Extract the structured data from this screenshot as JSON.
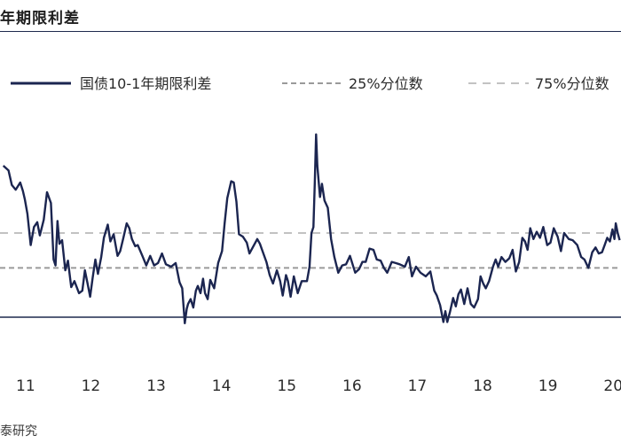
{
  "header": {
    "title": "年期限利差"
  },
  "footer": {
    "source": "泰研究"
  },
  "colors": {
    "series": "#1b2550",
    "p25": "#9a9a9a",
    "p75": "#c2c2c2",
    "axis": "#1f2a4d"
  },
  "chart_data": {
    "type": "line",
    "title": "年期限利差",
    "legend_position": "top",
    "x_tick_labels": [
      "11",
      "12",
      "13",
      "14",
      "15",
      "16",
      "17",
      "18",
      "19",
      "20"
    ],
    "series": [
      {
        "name": "国债10-1年期限利差",
        "style": "solid",
        "points": [
          [
            2010.67,
            226
          ],
          [
            2010.75,
            222
          ],
          [
            2010.8,
            210
          ],
          [
            2010.86,
            206
          ],
          [
            2010.93,
            212
          ],
          [
            2010.97,
            205
          ],
          [
            2011.0,
            198
          ],
          [
            2011.04,
            186
          ],
          [
            2011.09,
            160
          ],
          [
            2011.14,
            175
          ],
          [
            2011.19,
            179
          ],
          [
            2011.23,
            168
          ],
          [
            2011.29,
            181
          ],
          [
            2011.34,
            204
          ],
          [
            2011.4,
            195
          ],
          [
            2011.44,
            148
          ],
          [
            2011.47,
            143
          ],
          [
            2011.5,
            180
          ],
          [
            2011.53,
            161
          ],
          [
            2011.57,
            164
          ],
          [
            2011.62,
            139
          ],
          [
            2011.66,
            147
          ],
          [
            2011.71,
            125
          ],
          [
            2011.76,
            130
          ],
          [
            2011.83,
            120
          ],
          [
            2011.88,
            122
          ],
          [
            2011.92,
            139
          ],
          [
            2011.96,
            128
          ],
          [
            2012.0,
            117
          ],
          [
            2012.04,
            133
          ],
          [
            2012.08,
            148
          ],
          [
            2012.12,
            136
          ],
          [
            2012.17,
            150
          ],
          [
            2012.21,
            166
          ],
          [
            2012.27,
            177
          ],
          [
            2012.31,
            163
          ],
          [
            2012.36,
            169
          ],
          [
            2012.42,
            151
          ],
          [
            2012.46,
            155
          ],
          [
            2012.51,
            166
          ],
          [
            2012.56,
            178
          ],
          [
            2012.6,
            174
          ],
          [
            2012.64,
            165
          ],
          [
            2012.69,
            159
          ],
          [
            2012.73,
            160
          ],
          [
            2012.8,
            151
          ],
          [
            2012.86,
            143
          ],
          [
            2012.92,
            151
          ],
          [
            2012.98,
            143
          ],
          [
            2013.04,
            145
          ],
          [
            2013.1,
            153
          ],
          [
            2013.16,
            144
          ],
          [
            2013.24,
            142
          ],
          [
            2013.31,
            145
          ],
          [
            2013.37,
            129
          ],
          [
            2013.41,
            124
          ],
          [
            2013.43,
            110
          ],
          [
            2013.45,
            95
          ],
          [
            2013.48,
            107
          ],
          [
            2013.5,
            111
          ],
          [
            2013.54,
            115
          ],
          [
            2013.58,
            108
          ],
          [
            2013.62,
            122
          ],
          [
            2013.65,
            126
          ],
          [
            2013.69,
            120
          ],
          [
            2013.73,
            132
          ],
          [
            2013.76,
            120
          ],
          [
            2013.8,
            115
          ],
          [
            2013.84,
            131
          ],
          [
            2013.9,
            124
          ],
          [
            2013.96,
            145
          ],
          [
            2014.02,
            155
          ],
          [
            2014.06,
            178
          ],
          [
            2014.1,
            199
          ],
          [
            2014.16,
            213
          ],
          [
            2014.2,
            212
          ],
          [
            2014.24,
            196
          ],
          [
            2014.28,
            169
          ],
          [
            2014.34,
            167
          ],
          [
            2014.4,
            162
          ],
          [
            2014.44,
            153
          ],
          [
            2014.5,
            159
          ],
          [
            2014.56,
            165
          ],
          [
            2014.6,
            161
          ],
          [
            2014.64,
            155
          ],
          [
            2014.7,
            146
          ],
          [
            2014.75,
            135
          ],
          [
            2014.8,
            128
          ],
          [
            2014.86,
            139
          ],
          [
            2014.91,
            130
          ],
          [
            2014.95,
            118
          ],
          [
            2015.0,
            135
          ],
          [
            2015.03,
            130
          ],
          [
            2015.07,
            117
          ],
          [
            2015.12,
            134
          ],
          [
            2015.18,
            120
          ],
          [
            2015.24,
            130
          ],
          [
            2015.32,
            130
          ],
          [
            2015.36,
            142
          ],
          [
            2015.39,
            170
          ],
          [
            2015.42,
            175
          ],
          [
            2015.44,
            211
          ],
          [
            2015.46,
            252
          ],
          [
            2015.48,
            226
          ],
          [
            2015.52,
            200
          ],
          [
            2015.55,
            211
          ],
          [
            2015.59,
            197
          ],
          [
            2015.64,
            191
          ],
          [
            2015.69,
            165
          ],
          [
            2015.74,
            150
          ],
          [
            2015.8,
            137
          ],
          [
            2015.86,
            143
          ],
          [
            2015.92,
            144
          ],
          [
            2015.98,
            151
          ],
          [
            2016.06,
            137
          ],
          [
            2016.12,
            140
          ],
          [
            2016.17,
            146
          ],
          [
            2016.22,
            146
          ],
          [
            2016.28,
            157
          ],
          [
            2016.34,
            156
          ],
          [
            2016.39,
            148
          ],
          [
            2016.45,
            147
          ],
          [
            2016.5,
            141
          ],
          [
            2016.55,
            137
          ],
          [
            2016.62,
            146
          ],
          [
            2016.68,
            145
          ],
          [
            2016.74,
            144
          ],
          [
            2016.82,
            142
          ],
          [
            2016.88,
            150
          ],
          [
            2016.93,
            134
          ],
          [
            2016.99,
            142
          ],
          [
            2017.06,
            137
          ],
          [
            2017.14,
            134
          ],
          [
            2017.21,
            138
          ],
          [
            2017.27,
            122
          ],
          [
            2017.31,
            118
          ],
          [
            2017.36,
            110
          ],
          [
            2017.41,
            96
          ],
          [
            2017.44,
            105
          ],
          [
            2017.47,
            96
          ],
          [
            2017.51,
            104
          ],
          [
            2017.56,
            116
          ],
          [
            2017.6,
            109
          ],
          [
            2017.64,
            119
          ],
          [
            2017.68,
            123
          ],
          [
            2017.73,
            111
          ],
          [
            2017.78,
            124
          ],
          [
            2017.83,
            111
          ],
          [
            2017.88,
            108
          ],
          [
            2017.94,
            115
          ],
          [
            2017.98,
            134
          ],
          [
            2018.02,
            128
          ],
          [
            2018.06,
            124
          ],
          [
            2018.11,
            130
          ],
          [
            2018.17,
            142
          ],
          [
            2018.21,
            148
          ],
          [
            2018.25,
            142
          ],
          [
            2018.3,
            150
          ],
          [
            2018.36,
            146
          ],
          [
            2018.42,
            149
          ],
          [
            2018.47,
            156
          ],
          [
            2018.52,
            138
          ],
          [
            2018.57,
            146
          ],
          [
            2018.62,
            166
          ],
          [
            2018.66,
            163
          ],
          [
            2018.7,
            156
          ],
          [
            2018.74,
            174
          ],
          [
            2018.79,
            165
          ],
          [
            2018.84,
            171
          ],
          [
            2018.89,
            166
          ],
          [
            2018.94,
            175
          ],
          [
            2019.0,
            160
          ],
          [
            2019.05,
            162
          ],
          [
            2019.1,
            174
          ],
          [
            2019.16,
            167
          ],
          [
            2019.21,
            155
          ],
          [
            2019.26,
            170
          ],
          [
            2019.33,
            165
          ],
          [
            2019.39,
            164
          ],
          [
            2019.46,
            160
          ],
          [
            2019.52,
            150
          ],
          [
            2019.57,
            148
          ],
          [
            2019.63,
            141
          ],
          [
            2019.69,
            154
          ],
          [
            2019.74,
            158
          ],
          [
            2019.79,
            153
          ],
          [
            2019.84,
            154
          ],
          [
            2019.88,
            160
          ],
          [
            2019.92,
            166
          ],
          [
            2019.96,
            163
          ],
          [
            2020.0,
            173
          ],
          [
            2020.03,
            165
          ],
          [
            2020.05,
            178
          ],
          [
            2020.08,
            170
          ],
          [
            2020.11,
            164
          ]
        ]
      },
      {
        "name": "25%分位数",
        "style": "dashed",
        "value": 141
      },
      {
        "name": "75%分位数",
        "style": "dashed",
        "value": 170
      }
    ]
  }
}
